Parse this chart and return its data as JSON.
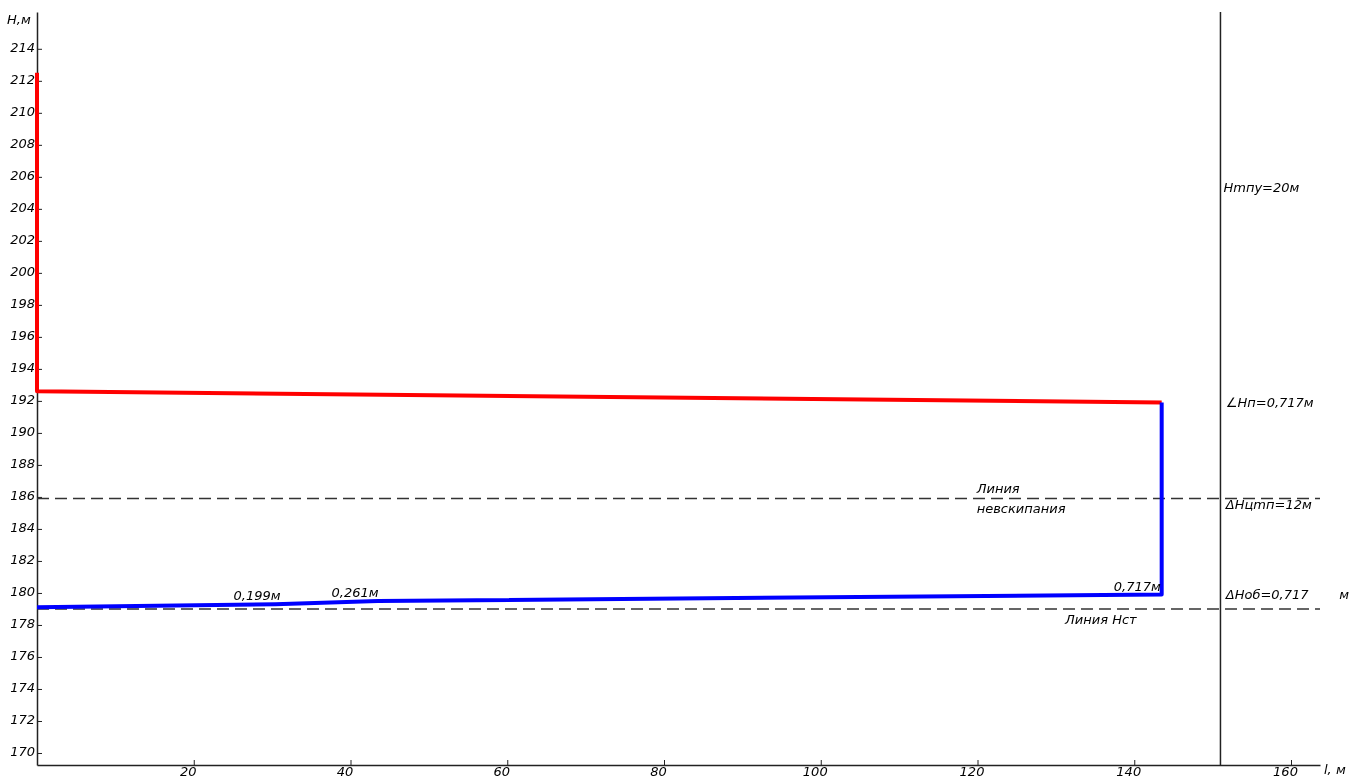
{
  "chart_data": {
    "type": "line",
    "xlabel": "l, м",
    "ylabel": "H,м",
    "xlim": [
      0,
      163.7
    ],
    "ylim": [
      169.25,
      216.3
    ],
    "xticks": [
      20,
      40,
      60,
      80,
      100,
      120,
      140,
      160
    ],
    "yticks": [
      170,
      172,
      174,
      176,
      178,
      180,
      182,
      184,
      186,
      188,
      190,
      192,
      194,
      196,
      198,
      200,
      202,
      204,
      206,
      208,
      210,
      212,
      214
    ],
    "grid": false,
    "marker": "none",
    "line_style": "solid",
    "series": [
      {
        "color": "#ff0000",
        "x": [
          0,
          0,
          143.5
        ],
        "values": [
          212.5,
          192.6,
          191.9
        ]
      },
      {
        "color": "#0000ff",
        "x": [
          143.5,
          143.5,
          43.5,
          30.4,
          0
        ],
        "values": [
          191.9,
          179.9,
          179.5,
          179.3,
          179.1
        ]
      }
    ],
    "ref_lines": [
      {
        "axis": "y",
        "value": 185.9,
        "color": "#333333",
        "line_style": "dashed",
        "label": "Линия невскипания"
      },
      {
        "axis": "y",
        "value": 179.0,
        "color": "#333333",
        "line_style": "dashed",
        "label": "Линия Hст"
      },
      {
        "axis": "x",
        "value": 151,
        "color": "#222222",
        "line_style": "solid"
      }
    ],
    "annotations": [
      {
        "text": "0,199м",
        "x": 24.7,
        "y": 179.3
      },
      {
        "text": "0,261м",
        "x": 37.2,
        "y": 179.5
      },
      {
        "text": "0,717м",
        "x": 137.0,
        "y": 179.85
      },
      {
        "text": "Hmпу=20м",
        "x": 151,
        "y": 204.8
      },
      {
        "text": "∠Hп=0,717м",
        "x": 151.3,
        "y": 191.4
      },
      {
        "text": "ΔHцmп=12м",
        "x": 151.3,
        "y": 185.0
      },
      {
        "text": "ΔHоб=0,717",
        "x": 151.3,
        "y": 179.4
      },
      "м"
    ]
  }
}
